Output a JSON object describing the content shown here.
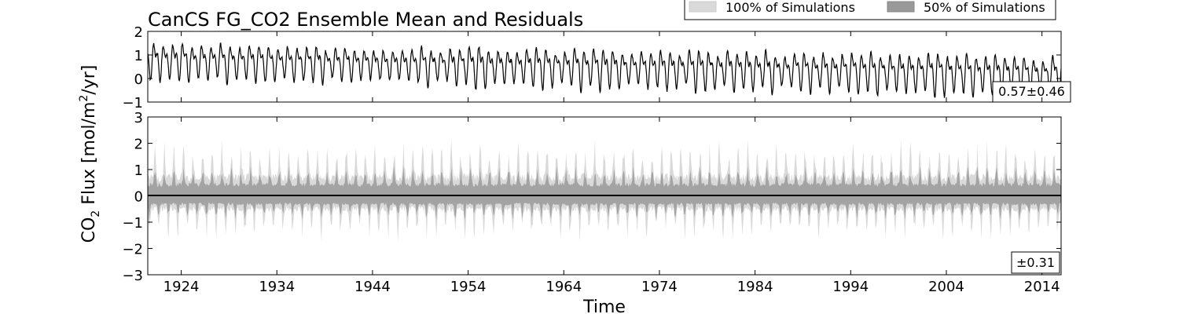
{
  "chart_data": [
    {
      "type": "line",
      "panel": "top",
      "title": "CanCS FG_CO2 Ensemble Mean and Residuals",
      "ylim": [
        -1,
        2
      ],
      "yticks": [
        "2",
        "1",
        "0",
        "−1"
      ],
      "annotation": "0.57±0.46",
      "series": [
        {
          "color": "#000000",
          "description_values": {
            "x_start": 1920.5,
            "x_end": 2016,
            "cycle_period_years": 1,
            "mean_early": 0.8,
            "mean_late": 0.2,
            "amplitude_range": [
              0.9,
              1.8
            ]
          }
        }
      ]
    },
    {
      "type": "area",
      "panel": "bottom",
      "ylim": [
        -3,
        3
      ],
      "yticks": [
        "3",
        "2",
        "1",
        "0",
        "−1",
        "−2",
        "−3"
      ],
      "annotation": "±0.31",
      "xlim": [
        1920.5,
        2016
      ],
      "xticks": [
        "1924",
        "1934",
        "1944",
        "1954",
        "1964",
        "1974",
        "1984",
        "1994",
        "2004",
        "2014"
      ],
      "xlabel": "Time",
      "series": [
        {
          "name": "100% of Simulations",
          "color": "#d9d9d9",
          "typical_range": [
            -1.6,
            2.1
          ]
        },
        {
          "name": "50% of Simulations",
          "color": "#999999",
          "typical_range": [
            -0.8,
            1.1
          ]
        }
      ]
    }
  ],
  "shared": {
    "ylabel": "CO₂ Flux [mol/m²/yr]",
    "ylabel_base": "CO",
    "ylabel_sub": "2",
    "ylabel_mid": " Flux [mol/m",
    "ylabel_sup": "2",
    "ylabel_end": "/yr]"
  },
  "legend": {
    "placement": "top-right",
    "items": [
      {
        "label": "100% of Simulations",
        "color": "#d9d9d9"
      },
      {
        "label": "50% of Simulations",
        "color": "#999999"
      }
    ]
  }
}
